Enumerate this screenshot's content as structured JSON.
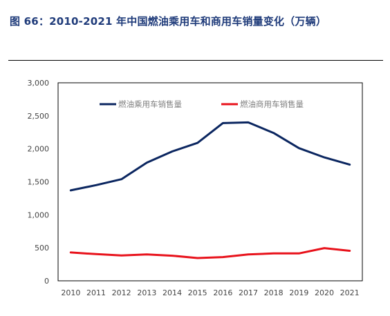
{
  "figure": {
    "title": "图 66：2010-2021 年中国燃油乘用车和商用车销量变化（万辆）"
  },
  "colors": {
    "title": "#1f3b7a",
    "passenger": "#0b2660",
    "commercial": "#e8121b"
  },
  "chart_data": {
    "type": "line",
    "title": "",
    "xlabel": "",
    "ylabel": "",
    "x": [
      "2010",
      "2011",
      "2012",
      "2013",
      "2014",
      "2015",
      "2016",
      "2017",
      "2018",
      "2019",
      "2020",
      "2021"
    ],
    "ylim": [
      0,
      3000
    ],
    "yticks": [
      0,
      500,
      1000,
      1500,
      2000,
      2500,
      3000
    ],
    "ytick_labels": [
      "0",
      "500",
      "1,000",
      "1,500",
      "2,000",
      "2,500",
      "3,000"
    ],
    "grid": false,
    "legend_position": "top",
    "series": [
      {
        "name": "燃油乘用车销售量",
        "color": "#0b2660",
        "values": [
          1370,
          1450,
          1540,
          1790,
          1960,
          2090,
          2390,
          2400,
          2240,
          2010,
          1870,
          1760
        ]
      },
      {
        "name": "燃油商用车销售量",
        "color": "#e8121b",
        "values": [
          430,
          405,
          385,
          400,
          380,
          345,
          360,
          400,
          415,
          415,
          495,
          455
        ]
      }
    ]
  }
}
